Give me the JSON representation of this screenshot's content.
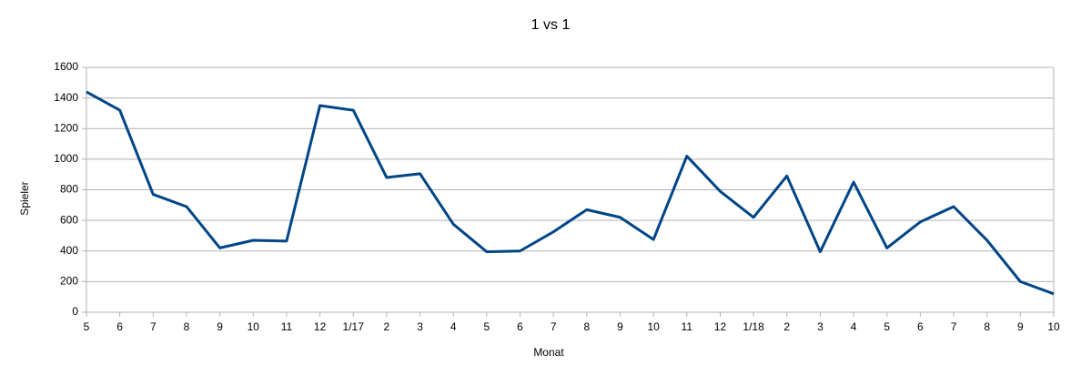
{
  "chart_data": {
    "type": "line",
    "title": "1 vs 1",
    "x_label": "Monat",
    "y_label": "Spieler",
    "categories": [
      "5",
      "6",
      "7",
      "8",
      "9",
      "10",
      "11",
      "12",
      "1/17",
      "2",
      "3",
      "4",
      "5",
      "6",
      "7",
      "8",
      "9",
      "10",
      "11",
      "12",
      "1/18",
      "2",
      "3",
      "4",
      "5",
      "6",
      "7",
      "8",
      "9",
      "10"
    ],
    "series": [
      {
        "name": "1 vs 1",
        "color": "#004586",
        "values": [
          1440,
          1320,
          770,
          690,
          420,
          470,
          465,
          1350,
          1320,
          880,
          905,
          575,
          395,
          400,
          525,
          670,
          620,
          475,
          1020,
          790,
          620,
          890,
          395,
          850,
          420,
          590,
          690,
          470,
          200,
          120
        ]
      }
    ],
    "ylim": [
      0,
      1600
    ],
    "yticks": [
      0,
      200,
      400,
      600,
      800,
      1000,
      1200,
      1400,
      1600
    ],
    "grid": true
  }
}
